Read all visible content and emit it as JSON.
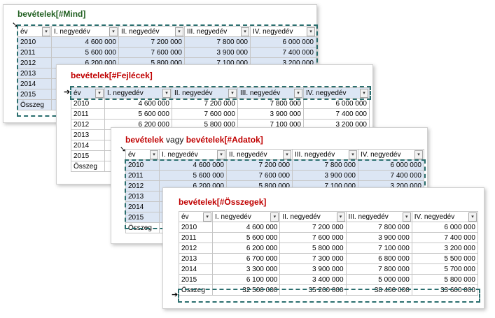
{
  "headers": [
    "év",
    "I. negyedév",
    "II. negyedév",
    "III. negyedév",
    "IV. negyedév"
  ],
  "rows": [
    [
      "2010",
      "4 600 000",
      "7 200 000",
      "7 800 000",
      "6 000 000"
    ],
    [
      "2011",
      "5 600 000",
      "7 600 000",
      "3 900 000",
      "7 400 000"
    ],
    [
      "2012",
      "6 200 000",
      "5 800 000",
      "7 100 000",
      "3 200 000"
    ],
    [
      "2013",
      "6 700 000",
      "7 300 000",
      "6 800 000",
      "5 500 000"
    ],
    [
      "2014",
      "3 300 000",
      "3 900 000",
      "7 800 000",
      "5 700 000"
    ],
    [
      "2015",
      "6 100 000",
      "3 400 000",
      "5 000 000",
      "5 800 000"
    ]
  ],
  "total": [
    "Összeg",
    "32 500 000",
    "35 200 000",
    "38 400 000",
    "33 600 000"
  ],
  "cards": {
    "mind": {
      "title": "bevételek[#Mind]"
    },
    "fejlecek": {
      "title": "bevételek[#Fejlécek]"
    },
    "adatok": {
      "title_a": "bevételek",
      "title_b": " vagy ",
      "title_c": "bevételek[#Adatok]"
    },
    "osszegek": {
      "title": "bevételek[#Összegek]"
    }
  },
  "colors": {
    "marquee": "#2a6e6e",
    "selection": "#dce6f4",
    "title_red": "#c00000",
    "title_green": "#1f5e1f"
  },
  "icons": {
    "dropdown": "filter-dropdown-icon",
    "pointer": "selector-arrow-icon"
  }
}
